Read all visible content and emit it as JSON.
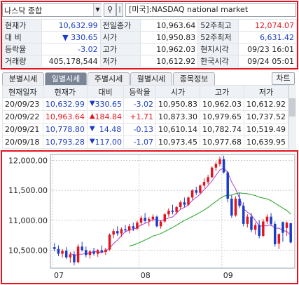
{
  "search": {
    "value": "나스닥 종합",
    "dropdown_glyph": "▼",
    "search_glyph": "⚲",
    "extra_glyph": "|"
  },
  "market_label": "[미국]:NASDAQ national market",
  "quote": {
    "rows": [
      [
        {
          "t": "현재가",
          "c": "lbl"
        },
        {
          "t": "10,632.99",
          "c": "num bl"
        },
        {
          "t": "전일종가",
          "c": "lbl"
        },
        {
          "t": "10,963.64",
          "c": "num"
        },
        {
          "t": "52주최고",
          "c": "lbl"
        },
        {
          "t": "12,074.07",
          "c": "num red"
        }
      ],
      [
        {
          "t": "대    비",
          "c": "lbl"
        },
        {
          "t": "▼        330.65",
          "c": "num bl"
        },
        {
          "t": "시가",
          "c": "lbl"
        },
        {
          "t": "10,950.83",
          "c": "num"
        },
        {
          "t": "52주최저",
          "c": "lbl"
        },
        {
          "t": "6,631.42",
          "c": "num bl"
        }
      ],
      [
        {
          "t": "등락율",
          "c": "lbl"
        },
        {
          "t": "-3.02",
          "c": "num bl"
        },
        {
          "t": "고가",
          "c": "lbl"
        },
        {
          "t": "10,962.03",
          "c": "num"
        },
        {
          "t": "현지시각",
          "c": "lbl"
        },
        {
          "t": "09/23 16:01",
          "c": "num"
        }
      ],
      [
        {
          "t": "거래량",
          "c": "lbl"
        },
        {
          "t": "405,178,544",
          "c": "num"
        },
        {
          "t": "저가",
          "c": "lbl"
        },
        {
          "t": "10,612.92",
          "c": "num"
        },
        {
          "t": "한국시각",
          "c": "lbl"
        },
        {
          "t": "09/24 05:01",
          "c": "num"
        }
      ]
    ]
  },
  "tabs": [
    "분별시세",
    "일별시세",
    "주별시세",
    "월별시세",
    "종목정보"
  ],
  "active_tab": 1,
  "chart_button": "차트",
  "daily": {
    "headers": [
      "현재일자",
      "현재가",
      "대비",
      "등락율",
      "시가",
      "고가",
      "저가"
    ],
    "rows": [
      [
        "20/09/23",
        "10,632.99",
        "▼",
        "330.65",
        "-3.02",
        "10,950.83",
        "10,962.03",
        "10,612.92"
      ],
      [
        "20/09/22",
        "10,963.64",
        "▲",
        "184.84",
        "+1.71",
        "10,873.30",
        "10,979.65",
        "10,737.52"
      ],
      [
        "20/09/21",
        "10,778.80",
        "▼",
        "14.48",
        "-0.13",
        "10,610.14",
        "10,782.74",
        "10,519.49"
      ],
      [
        "20/09/18",
        "10,793.28",
        "▼",
        "117.00",
        "-1.07",
        "10,973.45",
        "10,977.68",
        "10,639.95"
      ]
    ],
    "row_colors": [
      "blue",
      "red",
      "blue",
      "blue"
    ]
  },
  "chart_data": {
    "type": "candlestick",
    "y_ticks": [
      "12,000.00",
      "11,500.00",
      "11,000.00",
      "10,500.00"
    ],
    "y_tick_values": [
      12000,
      11500,
      11000,
      10500
    ],
    "ylim": [
      10200,
      12100
    ],
    "x_ticks": [
      {
        "label": "07",
        "index": 0
      },
      {
        "label": "08",
        "index": 22
      },
      {
        "label": "09",
        "index": 43
      }
    ],
    "colors": {
      "up": "#e4141e",
      "down": "#1a3cc8",
      "ma_short": "#b23cc8",
      "ma_long": "#22a022"
    },
    "candles": [
      [
        10550,
        10620,
        10480,
        10520
      ],
      [
        10520,
        10580,
        10400,
        10440
      ],
      [
        10440,
        10520,
        10380,
        10490
      ],
      [
        10490,
        10550,
        10350,
        10380
      ],
      [
        10380,
        10470,
        10290,
        10430
      ],
      [
        10430,
        10480,
        10250,
        10300
      ],
      [
        10300,
        10600,
        10280,
        10560
      ],
      [
        10560,
        10640,
        10480,
        10500
      ],
      [
        10500,
        10560,
        10380,
        10420
      ],
      [
        10420,
        10500,
        10360,
        10480
      ],
      [
        10480,
        10540,
        10410,
        10440
      ],
      [
        10440,
        10520,
        10390,
        10500
      ],
      [
        10500,
        10580,
        10450,
        10470
      ],
      [
        10470,
        10540,
        10420,
        10510
      ],
      [
        10510,
        10780,
        10490,
        10760
      ],
      [
        10760,
        10860,
        10700,
        10820
      ],
      [
        10820,
        10900,
        10740,
        10780
      ],
      [
        10780,
        10880,
        10720,
        10850
      ],
      [
        10850,
        10920,
        10800,
        10830
      ],
      [
        10830,
        10940,
        10780,
        10900
      ],
      [
        10900,
        10960,
        10820,
        10860
      ],
      [
        10860,
        10990,
        10840,
        10960
      ],
      [
        10960,
        11080,
        10920,
        11040
      ],
      [
        11040,
        11120,
        10960,
        10990
      ],
      [
        10990,
        11060,
        10900,
        11020
      ],
      [
        11020,
        11100,
        10980,
        11060
      ],
      [
        11060,
        11080,
        10880,
        10900
      ],
      [
        10900,
        11000,
        10860,
        10980
      ],
      [
        10980,
        11120,
        10960,
        11100
      ],
      [
        11100,
        11200,
        11060,
        11160
      ],
      [
        11160,
        11260,
        11100,
        11140
      ],
      [
        11140,
        11240,
        11100,
        11220
      ],
      [
        11220,
        11330,
        11180,
        11300
      ],
      [
        11300,
        11380,
        11220,
        11260
      ],
      [
        11260,
        11400,
        11240,
        11380
      ],
      [
        11380,
        11520,
        11340,
        11500
      ],
      [
        11500,
        11560,
        11420,
        11460
      ],
      [
        11460,
        11600,
        11440,
        11580
      ],
      [
        11580,
        11700,
        11540,
        11640
      ],
      [
        11640,
        11760,
        11600,
        11720
      ],
      [
        11720,
        11900,
        11700,
        11880
      ],
      [
        11880,
        11980,
        11820,
        11940
      ],
      [
        11940,
        12060,
        11900,
        12020
      ],
      [
        12020,
        12080,
        11780,
        11800
      ],
      [
        11800,
        11820,
        11300,
        11360
      ],
      [
        11360,
        11420,
        11040,
        11080
      ],
      [
        11080,
        11400,
        11060,
        11360
      ],
      [
        11360,
        11460,
        11200,
        11240
      ],
      [
        11240,
        11300,
        10900,
        10940
      ],
      [
        10940,
        11100,
        10880,
        11060
      ],
      [
        11060,
        11120,
        10800,
        10840
      ],
      [
        10840,
        10960,
        10760,
        10920
      ],
      [
        10920,
        11000,
        10700,
        10740
      ],
      [
        10740,
        11020,
        10720,
        10980
      ],
      [
        10980,
        11100,
        10940,
        11060
      ],
      [
        11060,
        11120,
        10900,
        10940
      ],
      [
        10940,
        10980,
        10560,
        10600
      ],
      [
        10610,
        10780,
        10520,
        10770
      ],
      [
        10970,
        10980,
        10640,
        10790
      ],
      [
        10870,
        10980,
        10740,
        10960
      ],
      [
        10950,
        10960,
        10610,
        10630
      ]
    ]
  }
}
